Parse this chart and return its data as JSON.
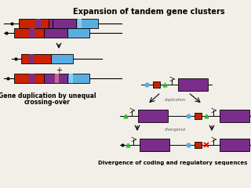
{
  "title": "Expansion of tandem gene clusters",
  "bottom_label": "Divergence of coding and regulatory sequences",
  "left_label_line1": "Gene duplication by unequal",
  "left_label_line2": "crossing-over",
  "bg_color": "#f2efe9",
  "colors": {
    "red": "#cc2200",
    "purple": "#7b2d8b",
    "blue": "#5aade0",
    "green": "#33bb33",
    "line": "#222222"
  }
}
